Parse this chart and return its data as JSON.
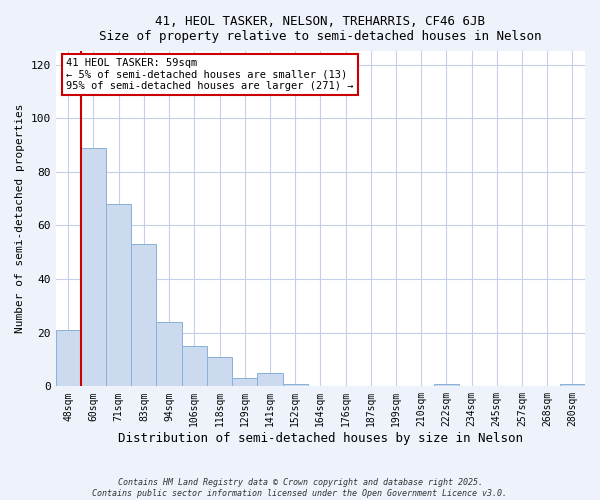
{
  "title": "41, HEOL TASKER, NELSON, TREHARRIS, CF46 6JB",
  "subtitle": "Size of property relative to semi-detached houses in Nelson",
  "xlabel": "Distribution of semi-detached houses by size in Nelson",
  "ylabel": "Number of semi-detached properties",
  "bin_labels": [
    "48sqm",
    "60sqm",
    "71sqm",
    "83sqm",
    "94sqm",
    "106sqm",
    "118sqm",
    "129sqm",
    "141sqm",
    "152sqm",
    "164sqm",
    "176sqm",
    "187sqm",
    "199sqm",
    "210sqm",
    "222sqm",
    "234sqm",
    "245sqm",
    "257sqm",
    "268sqm",
    "280sqm"
  ],
  "bar_heights": [
    21,
    89,
    68,
    53,
    24,
    15,
    11,
    3,
    5,
    1,
    0,
    0,
    0,
    0,
    0,
    1,
    0,
    0,
    0,
    0,
    1
  ],
  "bar_color": "#ccdaf0",
  "bar_edge_color": "#8ab0d8",
  "vline_x": 1,
  "vline_color": "#cc0000",
  "annotation_title": "41 HEOL TASKER: 59sqm",
  "annotation_line1": "← 5% of semi-detached houses are smaller (13)",
  "annotation_line2": "95% of semi-detached houses are larger (271) →",
  "annotation_box_color": "#cc0000",
  "ylim": [
    0,
    125
  ],
  "yticks": [
    0,
    20,
    40,
    60,
    80,
    100,
    120
  ],
  "footer_line1": "Contains HM Land Registry data © Crown copyright and database right 2025.",
  "footer_line2": "Contains public sector information licensed under the Open Government Licence v3.0.",
  "bg_color": "#eef2fa",
  "plot_bg_color": "#ffffff",
  "grid_color": "#c5d0e8"
}
